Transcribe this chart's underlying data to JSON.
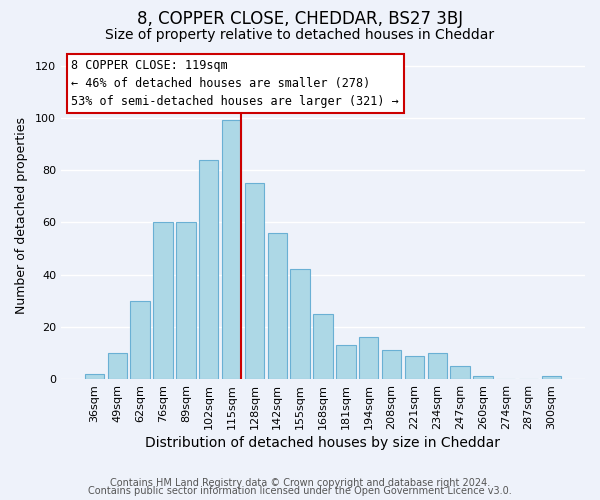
{
  "title": "8, COPPER CLOSE, CHEDDAR, BS27 3BJ",
  "subtitle": "Size of property relative to detached houses in Cheddar",
  "xlabel": "Distribution of detached houses by size in Cheddar",
  "ylabel": "Number of detached properties",
  "bar_labels": [
    "36sqm",
    "49sqm",
    "62sqm",
    "76sqm",
    "89sqm",
    "102sqm",
    "115sqm",
    "128sqm",
    "142sqm",
    "155sqm",
    "168sqm",
    "181sqm",
    "194sqm",
    "208sqm",
    "221sqm",
    "234sqm",
    "247sqm",
    "260sqm",
    "274sqm",
    "287sqm",
    "300sqm"
  ],
  "bar_values": [
    2,
    10,
    30,
    60,
    60,
    84,
    99,
    75,
    56,
    42,
    25,
    13,
    16,
    11,
    9,
    10,
    5,
    1,
    0,
    0,
    1
  ],
  "bar_color": "#add8e6",
  "bar_edge_color": "#6ab0d4",
  "highlight_index": 6,
  "highlight_line_color": "#cc0000",
  "ylim": [
    0,
    125
  ],
  "yticks": [
    0,
    20,
    40,
    60,
    80,
    100,
    120
  ],
  "annotation_title": "8 COPPER CLOSE: 119sqm",
  "annotation_line1": "← 46% of detached houses are smaller (278)",
  "annotation_line2": "53% of semi-detached houses are larger (321) →",
  "annotation_box_color": "#ffffff",
  "annotation_box_edge": "#cc0000",
  "footer1": "Contains HM Land Registry data © Crown copyright and database right 2024.",
  "footer2": "Contains public sector information licensed under the Open Government Licence v3.0.",
  "background_color": "#eef2fa",
  "grid_color": "#ffffff",
  "title_fontsize": 12,
  "subtitle_fontsize": 10,
  "xlabel_fontsize": 10,
  "ylabel_fontsize": 9,
  "tick_fontsize": 8,
  "footer_fontsize": 7,
  "annotation_fontsize": 8.5
}
